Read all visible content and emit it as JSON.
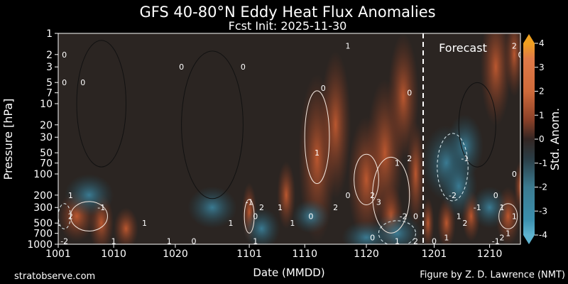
{
  "chart_data": {
    "type": "heatmap",
    "title": "GFS 40-80°N Eddy Heat Flux Anomalies",
    "subtitle": "Fcst Init: 2025-11-30",
    "xlabel": "Date (MMDD)",
    "ylabel": "Pressure [hPa]",
    "x_ticks": [
      "1001",
      "1010",
      "1020",
      "1101",
      "1110",
      "1120",
      "1201",
      "1210"
    ],
    "x_range": [
      "1001",
      "1215"
    ],
    "y_ticks": [
      1,
      2,
      3,
      5,
      7,
      10,
      20,
      30,
      50,
      70,
      100,
      200,
      300,
      500,
      700,
      1000
    ],
    "y_range": [
      1000,
      1
    ],
    "y_scale": "log",
    "colorbar": {
      "label": "Std. Anom.",
      "ticks": [
        4,
        3,
        2,
        1,
        0,
        -1,
        -2,
        -3,
        -4
      ],
      "range": [
        -4,
        4
      ],
      "colors": [
        "#2f7f9f",
        "#3b8fad",
        "#5fa7bf",
        "#2a3c44",
        "#3a2a24",
        "#b6542a",
        "#cf6a3a",
        "#e07a48",
        "#f0a020"
      ]
    },
    "forecast_start": "1201",
    "forecast_label": "Forecast",
    "contour_labels": [
      "0",
      "0",
      "0",
      "0",
      "0",
      "0",
      "0",
      "0",
      "0",
      "0",
      "0",
      "0",
      "0",
      "0",
      "0",
      "0",
      "0",
      "1",
      "1",
      "1",
      "1",
      "1",
      "1",
      "1",
      "1",
      "1",
      "1",
      "1",
      "1",
      "1",
      "1",
      "1",
      "1",
      "1",
      "1",
      "2",
      "2",
      "2",
      "2",
      "2",
      "2",
      "2",
      "2",
      "2",
      "3",
      "-1",
      "-1",
      "-1",
      "-1",
      "-1",
      "-2",
      "-2",
      "-2"
    ],
    "notes": {
      "left": "stratobserve.com",
      "right": "Figure by Z. D. Lawrence (NMT)"
    }
  }
}
